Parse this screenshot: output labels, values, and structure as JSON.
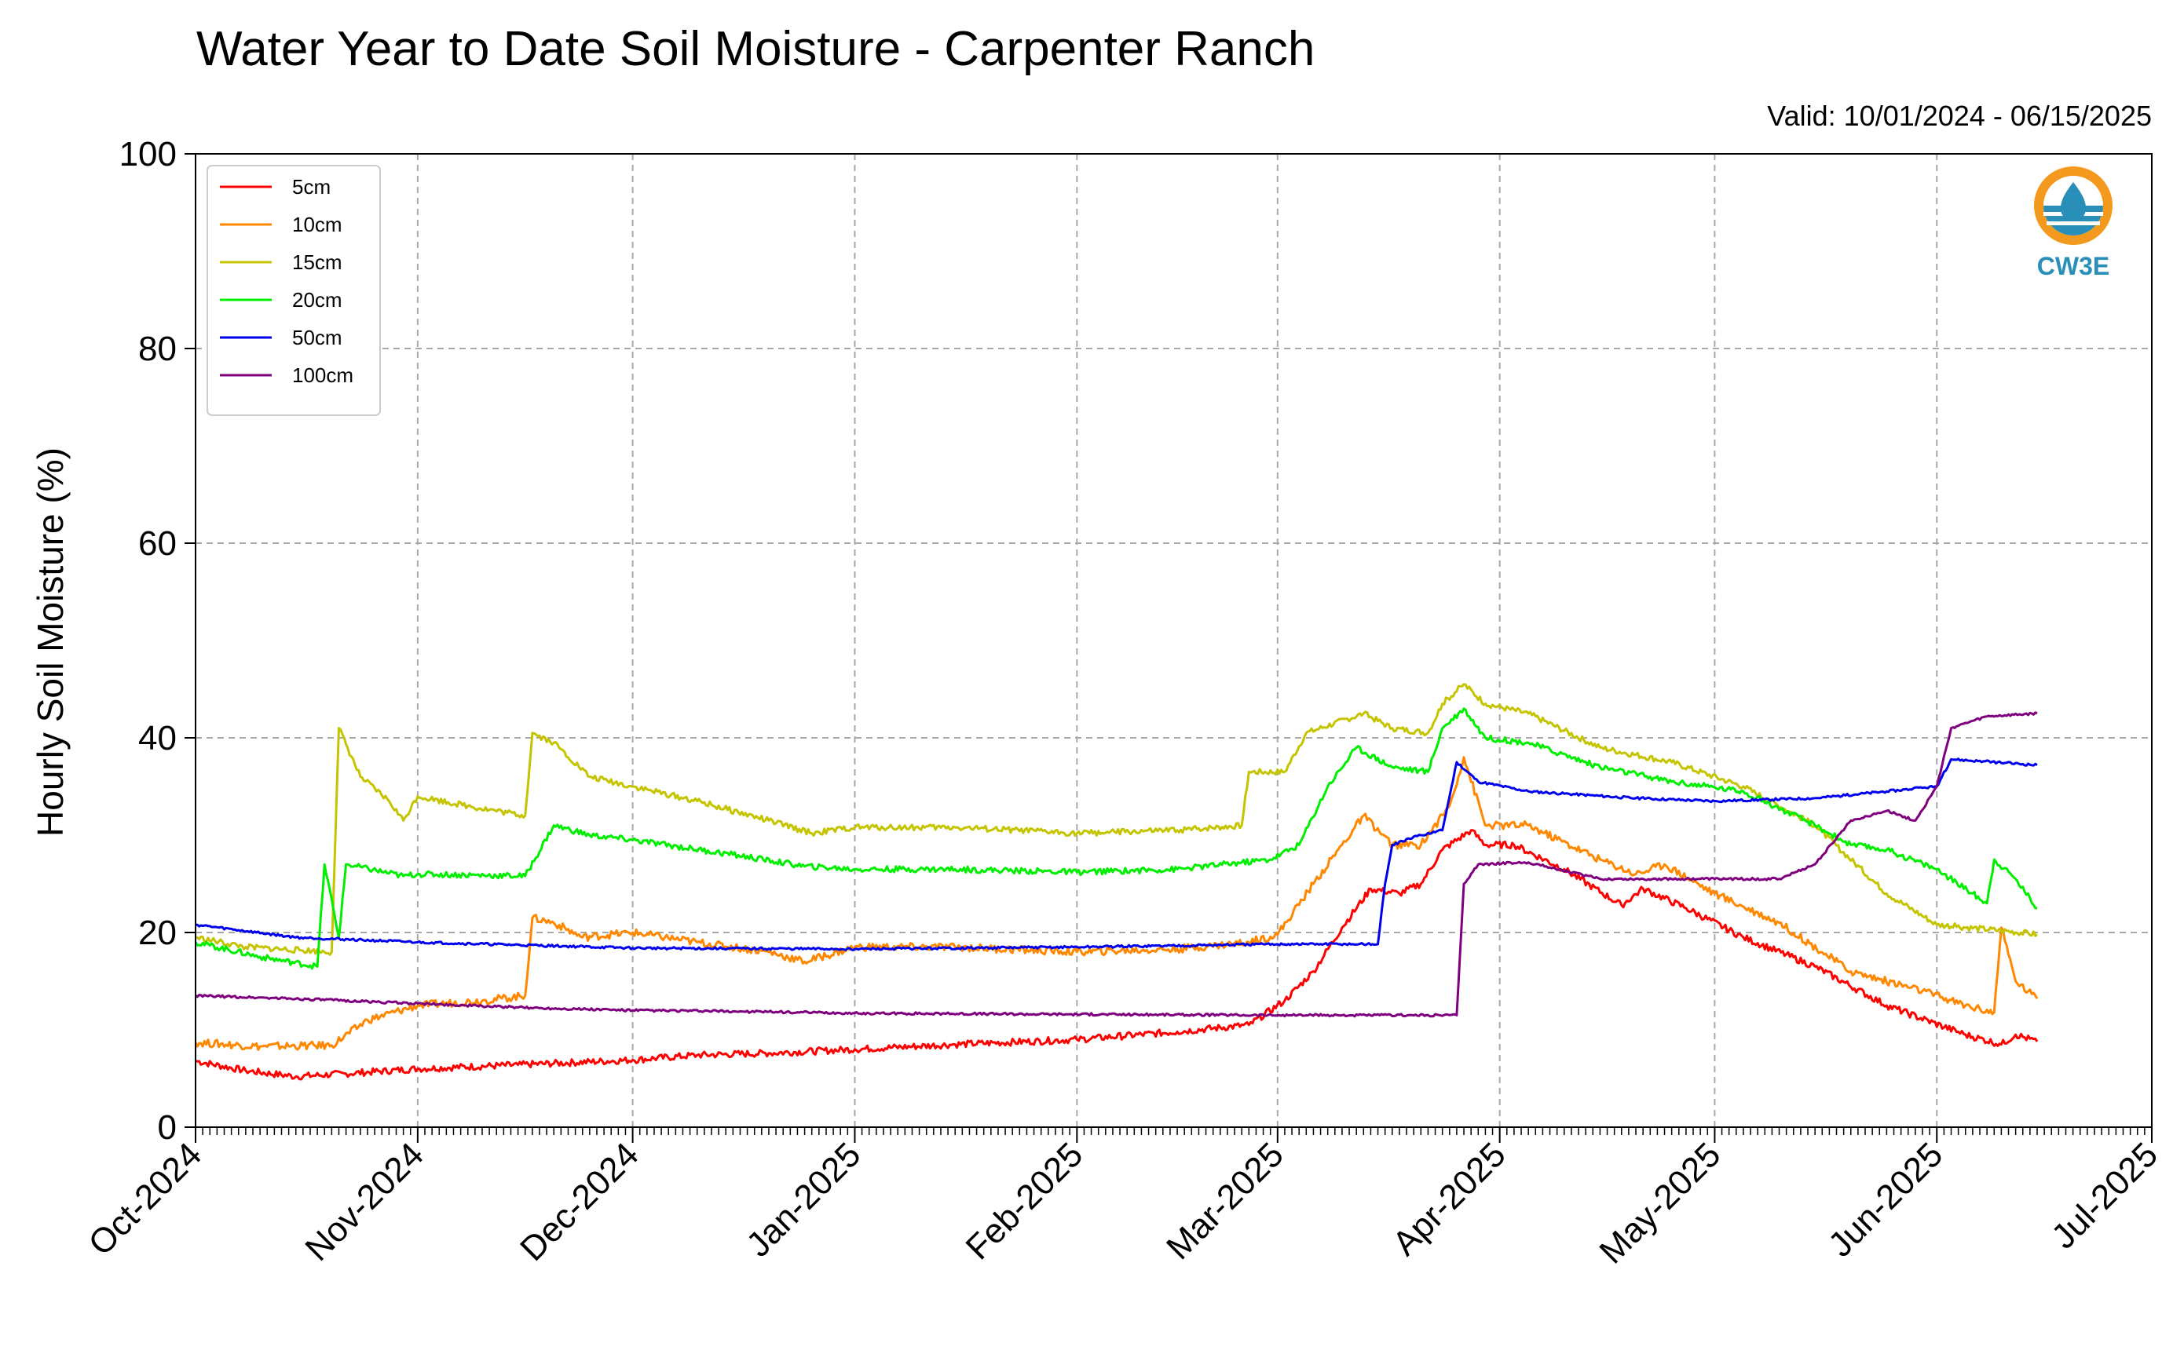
{
  "title": "Water Year to Date Soil Moisture - Carpenter Ranch",
  "subtitle": "Valid: 10/01/2024 - 06/15/2025",
  "logo": {
    "text": "CW3E",
    "icon": "water-drop-logo",
    "colors": {
      "ring": "#f39a1e",
      "water": "#2a8fb8",
      "text": "#2a8fb8"
    }
  },
  "chart_data": {
    "type": "line",
    "title": "Water Year to Date Soil Moisture - Carpenter Ranch",
    "subtitle": "Valid: 10/01/2024 - 06/15/2025",
    "xlabel": "",
    "ylabel": "Hourly Soil Moisture (%)",
    "xlim": [
      "2024-10-01",
      "2025-07-01"
    ],
    "ylim": [
      0,
      100
    ],
    "y_ticks": [
      0,
      20,
      40,
      60,
      80,
      100
    ],
    "x_ticks": [
      {
        "date": "2024-10-01",
        "label": "Oct-2024"
      },
      {
        "date": "2024-11-01",
        "label": "Nov-2024"
      },
      {
        "date": "2024-12-01",
        "label": "Dec-2024"
      },
      {
        "date": "2025-01-01",
        "label": "Jan-2025"
      },
      {
        "date": "2025-02-01",
        "label": "Feb-2025"
      },
      {
        "date": "2025-03-01",
        "label": "Mar-2025"
      },
      {
        "date": "2025-04-01",
        "label": "Apr-2025"
      },
      {
        "date": "2025-05-01",
        "label": "May-2025"
      },
      {
        "date": "2025-06-01",
        "label": "Jun-2025"
      },
      {
        "date": "2025-07-01",
        "label": "Jul-2025"
      }
    ],
    "grid": true,
    "legend_position": "top-left",
    "series": [
      {
        "name": "5cm",
        "color": "#ff0000",
        "points": [
          [
            "2024-10-01",
            6.8
          ],
          [
            "2024-10-08",
            5.8
          ],
          [
            "2024-10-15",
            5.2
          ],
          [
            "2024-10-22",
            5.5
          ],
          [
            "2024-11-01",
            6.0
          ],
          [
            "2024-11-15",
            6.4
          ],
          [
            "2024-12-01",
            6.9
          ],
          [
            "2024-12-10",
            7.4
          ],
          [
            "2024-12-20",
            7.6
          ],
          [
            "2025-01-01",
            8.0
          ],
          [
            "2025-01-15",
            8.5
          ],
          [
            "2025-02-01",
            9.0
          ],
          [
            "2025-02-15",
            9.8
          ],
          [
            "2025-02-25",
            10.5
          ],
          [
            "2025-03-02",
            13.0
          ],
          [
            "2025-03-06",
            16.0
          ],
          [
            "2025-03-10",
            20.5
          ],
          [
            "2025-03-14",
            24.5
          ],
          [
            "2025-03-18",
            24.0
          ],
          [
            "2025-03-21",
            25.0
          ],
          [
            "2025-03-24",
            28.5
          ],
          [
            "2025-03-28",
            30.5
          ],
          [
            "2025-03-30",
            29.0
          ],
          [
            "2025-04-03",
            29.0
          ],
          [
            "2025-04-10",
            26.5
          ],
          [
            "2025-04-18",
            22.8
          ],
          [
            "2025-04-21",
            24.5
          ],
          [
            "2025-04-27",
            22.5
          ],
          [
            "2025-05-05",
            19.5
          ],
          [
            "2025-05-15",
            16.5
          ],
          [
            "2025-05-25",
            12.5
          ],
          [
            "2025-06-05",
            9.5
          ],
          [
            "2025-06-10",
            8.5
          ],
          [
            "2025-06-12",
            9.5
          ],
          [
            "2025-06-15",
            8.8
          ]
        ]
      },
      {
        "name": "10cm",
        "color": "#ff8800",
        "points": [
          [
            "2024-10-01",
            8.7
          ],
          [
            "2024-10-10",
            8.3
          ],
          [
            "2024-10-20",
            8.4
          ],
          [
            "2024-10-25",
            11.0
          ],
          [
            "2024-11-01",
            12.5
          ],
          [
            "2024-11-10",
            13.0
          ],
          [
            "2024-11-16",
            13.5
          ],
          [
            "2024-11-17",
            21.5
          ],
          [
            "2024-11-20",
            21.0
          ],
          [
            "2024-11-24",
            19.5
          ],
          [
            "2024-12-01",
            20.0
          ],
          [
            "2024-12-10",
            19.0
          ],
          [
            "2024-12-20",
            18.0
          ],
          [
            "2024-12-25",
            17.0
          ],
          [
            "2025-01-01",
            18.5
          ],
          [
            "2025-01-15",
            18.5
          ],
          [
            "2025-02-01",
            18.0
          ],
          [
            "2025-02-15",
            18.3
          ],
          [
            "2025-02-25",
            19.0
          ],
          [
            "2025-03-01",
            19.8
          ],
          [
            "2025-03-06",
            25.0
          ],
          [
            "2025-03-10",
            29.0
          ],
          [
            "2025-03-13",
            32.0
          ],
          [
            "2025-03-17",
            29.0
          ],
          [
            "2025-03-21",
            29.0
          ],
          [
            "2025-03-25",
            33.0
          ],
          [
            "2025-03-27",
            38.0
          ],
          [
            "2025-03-30",
            31.0
          ],
          [
            "2025-04-05",
            31.0
          ],
          [
            "2025-04-15",
            27.5
          ],
          [
            "2025-04-20",
            26.0
          ],
          [
            "2025-04-24",
            27.0
          ],
          [
            "2025-05-01",
            24.0
          ],
          [
            "2025-05-10",
            21.0
          ],
          [
            "2025-05-20",
            16.0
          ],
          [
            "2025-05-30",
            14.0
          ],
          [
            "2025-06-05",
            12.5
          ],
          [
            "2025-06-09",
            11.8
          ],
          [
            "2025-06-10",
            20.5
          ],
          [
            "2025-06-12",
            15.0
          ],
          [
            "2025-06-15",
            13.2
          ]
        ]
      },
      {
        "name": "15cm",
        "color": "#c4c400",
        "points": [
          [
            "2024-10-01",
            19.5
          ],
          [
            "2024-10-08",
            18.5
          ],
          [
            "2024-10-20",
            18.0
          ],
          [
            "2024-10-21",
            41.0
          ],
          [
            "2024-10-24",
            36.0
          ],
          [
            "2024-10-28",
            33.5
          ],
          [
            "2024-10-30",
            31.5
          ],
          [
            "2024-11-01",
            34.0
          ],
          [
            "2024-11-08",
            33.0
          ],
          [
            "2024-11-16",
            32.0
          ],
          [
            "2024-11-17",
            40.5
          ],
          [
            "2024-11-20",
            39.5
          ],
          [
            "2024-11-25",
            36.0
          ],
          [
            "2024-12-01",
            35.0
          ],
          [
            "2024-12-10",
            33.5
          ],
          [
            "2024-12-20",
            31.5
          ],
          [
            "2024-12-26",
            30.2
          ],
          [
            "2025-01-01",
            30.8
          ],
          [
            "2025-01-15",
            30.8
          ],
          [
            "2025-02-01",
            30.2
          ],
          [
            "2025-02-15",
            30.5
          ],
          [
            "2025-02-24",
            31.0
          ],
          [
            "2025-02-25",
            36.5
          ],
          [
            "2025-03-02",
            36.5
          ],
          [
            "2025-03-05",
            40.5
          ],
          [
            "2025-03-13",
            42.5
          ],
          [
            "2025-03-17",
            41.0
          ],
          [
            "2025-03-22",
            40.5
          ],
          [
            "2025-03-24",
            43.5
          ],
          [
            "2025-03-27",
            45.5
          ],
          [
            "2025-03-30",
            43.5
          ],
          [
            "2025-04-05",
            42.5
          ],
          [
            "2025-04-15",
            39.0
          ],
          [
            "2025-04-25",
            37.5
          ],
          [
            "2025-05-05",
            35.0
          ],
          [
            "2025-05-15",
            31.0
          ],
          [
            "2025-05-25",
            24.0
          ],
          [
            "2025-06-01",
            20.8
          ],
          [
            "2025-06-10",
            20.2
          ],
          [
            "2025-06-15",
            19.8
          ]
        ]
      },
      {
        "name": "20cm",
        "color": "#00ee00",
        "points": [
          [
            "2024-10-01",
            19.0
          ],
          [
            "2024-10-10",
            17.5
          ],
          [
            "2024-10-18",
            16.5
          ],
          [
            "2024-10-19",
            27.0
          ],
          [
            "2024-10-21",
            19.5
          ],
          [
            "2024-10-22",
            27.0
          ],
          [
            "2024-10-30",
            25.8
          ],
          [
            "2024-11-01",
            26.0
          ],
          [
            "2024-11-16",
            25.8
          ],
          [
            "2024-11-20",
            31.0
          ],
          [
            "2024-11-25",
            30.0
          ],
          [
            "2024-12-01",
            29.5
          ],
          [
            "2024-12-15",
            28.0
          ],
          [
            "2024-12-25",
            26.8
          ],
          [
            "2025-01-01",
            26.5
          ],
          [
            "2025-01-15",
            26.5
          ],
          [
            "2025-02-01",
            26.2
          ],
          [
            "2025-02-15",
            26.5
          ],
          [
            "2025-02-28",
            27.5
          ],
          [
            "2025-03-04",
            29.0
          ],
          [
            "2025-03-08",
            35.0
          ],
          [
            "2025-03-12",
            39.0
          ],
          [
            "2025-03-17",
            37.0
          ],
          [
            "2025-03-22",
            36.5
          ],
          [
            "2025-03-24",
            41.0
          ],
          [
            "2025-03-27",
            43.0
          ],
          [
            "2025-03-30",
            40.0
          ],
          [
            "2025-04-05",
            39.5
          ],
          [
            "2025-04-15",
            37.0
          ],
          [
            "2025-04-25",
            35.5
          ],
          [
            "2025-05-05",
            34.5
          ],
          [
            "2025-05-15",
            31.0
          ],
          [
            "2025-05-20",
            29.0
          ],
          [
            "2025-05-25",
            28.5
          ],
          [
            "2025-06-01",
            26.5
          ],
          [
            "2025-06-08",
            23.0
          ],
          [
            "2025-06-09",
            27.5
          ],
          [
            "2025-06-12",
            25.5
          ],
          [
            "2025-06-15",
            22.5
          ]
        ]
      },
      {
        "name": "50cm",
        "color": "#0000ee",
        "points": [
          [
            "2024-10-01",
            20.8
          ],
          [
            "2024-10-15",
            19.5
          ],
          [
            "2024-11-01",
            19.0
          ],
          [
            "2024-12-01",
            18.4
          ],
          [
            "2025-01-01",
            18.3
          ],
          [
            "2025-02-01",
            18.5
          ],
          [
            "2025-03-01",
            18.8
          ],
          [
            "2025-03-15",
            18.8
          ],
          [
            "2025-03-16",
            25.0
          ],
          [
            "2025-03-17",
            29.0
          ],
          [
            "2025-03-21",
            30.0
          ],
          [
            "2025-03-24",
            30.5
          ],
          [
            "2025-03-26",
            37.5
          ],
          [
            "2025-03-29",
            35.5
          ],
          [
            "2025-04-05",
            34.5
          ],
          [
            "2025-04-20",
            33.8
          ],
          [
            "2025-05-01",
            33.5
          ],
          [
            "2025-05-15",
            33.8
          ],
          [
            "2025-05-25",
            34.5
          ],
          [
            "2025-06-01",
            35.0
          ],
          [
            "2025-06-03",
            37.8
          ],
          [
            "2025-06-15",
            37.2
          ]
        ]
      },
      {
        "name": "100cm",
        "color": "#7f007f",
        "points": [
          [
            "2024-10-01",
            13.5
          ],
          [
            "2024-10-15",
            13.2
          ],
          [
            "2024-11-01",
            12.7
          ],
          [
            "2024-11-15",
            12.3
          ],
          [
            "2024-12-01",
            12.0
          ],
          [
            "2024-12-15",
            11.9
          ],
          [
            "2025-01-01",
            11.7
          ],
          [
            "2025-02-01",
            11.6
          ],
          [
            "2025-03-01",
            11.5
          ],
          [
            "2025-03-26",
            11.5
          ],
          [
            "2025-03-27",
            25.0
          ],
          [
            "2025-03-29",
            27.0
          ],
          [
            "2025-04-05",
            27.2
          ],
          [
            "2025-04-15",
            25.5
          ],
          [
            "2025-05-01",
            25.5
          ],
          [
            "2025-05-10",
            25.5
          ],
          [
            "2025-05-15",
            27.0
          ],
          [
            "2025-05-20",
            31.5
          ],
          [
            "2025-05-25",
            32.5
          ],
          [
            "2025-05-29",
            31.5
          ],
          [
            "2025-06-01",
            35.0
          ],
          [
            "2025-06-03",
            41.0
          ],
          [
            "2025-06-08",
            42.2
          ],
          [
            "2025-06-15",
            42.5
          ]
        ]
      }
    ]
  }
}
